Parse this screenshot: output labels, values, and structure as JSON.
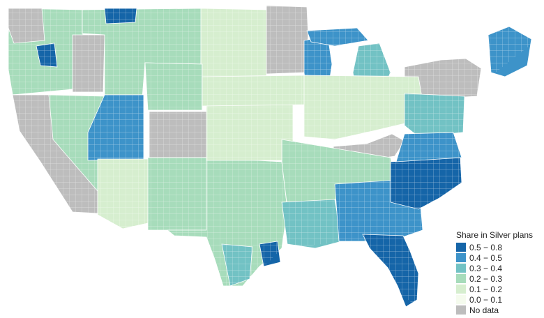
{
  "colors": {
    "c5": "#1565a8",
    "c4": "#3d93c9",
    "c3": "#72c2c4",
    "c2": "#a7dcbb",
    "c1": "#d6eecf",
    "c0": "#f5fbee",
    "nodata": "#bdbdbd",
    "background": "#ffffff",
    "border": "#ffffff"
  },
  "legend": {
    "title": "Share in Silver plans",
    "items": [
      {
        "label": "0.5 − 0.8",
        "color_key": "c5"
      },
      {
        "label": "0.4 − 0.5",
        "color_key": "c4"
      },
      {
        "label": "0.3 − 0.4",
        "color_key": "c3"
      },
      {
        "label": "0.2 − 0.3",
        "color_key": "c2"
      },
      {
        "label": "0.1 − 0.2",
        "color_key": "c1"
      },
      {
        "label": "0.0 − 0.1",
        "color_key": "c0"
      },
      {
        "label": "No data",
        "color_key": "nodata"
      }
    ]
  },
  "regions": [
    {
      "name": "washington-oregon-west",
      "category": "c2"
    },
    {
      "name": "oregon-coast",
      "category": "nodata"
    },
    {
      "name": "spokane-area",
      "category": "c5"
    },
    {
      "name": "idaho",
      "category": "nodata"
    },
    {
      "name": "montana-west",
      "category": "c2"
    },
    {
      "name": "glacier-area",
      "category": "c5"
    },
    {
      "name": "north-dakota",
      "category": "c1"
    },
    {
      "name": "minnesota",
      "category": "nodata"
    },
    {
      "name": "wisconsin",
      "category": "c4"
    },
    {
      "name": "michigan-upper",
      "category": "c4"
    },
    {
      "name": "michigan-lower",
      "category": "c3"
    },
    {
      "name": "new-york",
      "category": "nodata"
    },
    {
      "name": "maine",
      "category": "c4"
    },
    {
      "name": "california",
      "category": "nodata"
    },
    {
      "name": "nevada",
      "category": "c2"
    },
    {
      "name": "utah",
      "category": "c4"
    },
    {
      "name": "colorado",
      "category": "nodata"
    },
    {
      "name": "wyoming",
      "category": "c2"
    },
    {
      "name": "arizona",
      "category": "c1"
    },
    {
      "name": "new-mexico",
      "category": "c2"
    },
    {
      "name": "texas",
      "category": "c2"
    },
    {
      "name": "oklahoma-kansas",
      "category": "c1"
    },
    {
      "name": "nebraska-iowa",
      "category": "c1"
    },
    {
      "name": "illinois-indiana-ohio",
      "category": "c1"
    },
    {
      "name": "kentucky",
      "category": "nodata"
    },
    {
      "name": "pennsylvania-nj",
      "category": "c3"
    },
    {
      "name": "tennessee-arkansas",
      "category": "c2"
    },
    {
      "name": "louisiana-mississippi",
      "category": "c3"
    },
    {
      "name": "alabama-georgia",
      "category": "c4"
    },
    {
      "name": "carolinas",
      "category": "c5"
    },
    {
      "name": "virginia",
      "category": "c4"
    },
    {
      "name": "florida",
      "category": "c5"
    },
    {
      "name": "houston-gulf",
      "category": "c5"
    },
    {
      "name": "south-texas",
      "category": "c3"
    }
  ]
}
